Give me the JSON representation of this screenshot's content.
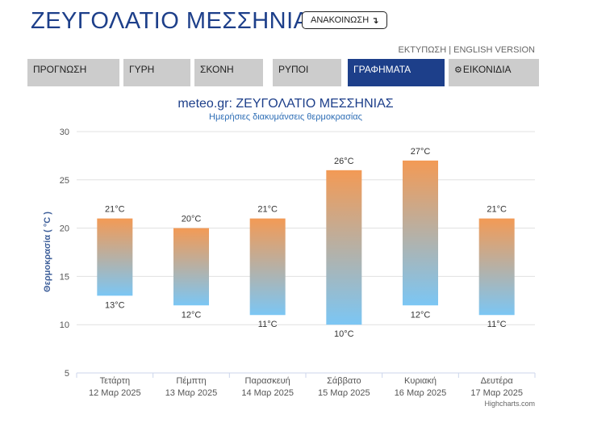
{
  "header": {
    "title": "ΖΕΥΓΟΛΑΤΙΟ ΜΕΣΣΗΝΙΑΣ",
    "announce_label": "ΑΝΑΚΟΙΝΩΣΗ",
    "announce_icon": "down-arrow-icon",
    "print_label": "ΕΚΤΥΠΩΣΗ",
    "separator": "|",
    "english_label": "ENGLISH VERSION"
  },
  "tabs": [
    {
      "label": "ΠΡΟΓΝΩΣΗ",
      "active": false
    },
    {
      "label": "ΓΥΡΗ",
      "active": false
    },
    {
      "label": "ΣΚΟΝΗ",
      "active": false
    },
    {
      "label": "ΡΥΠΟΙ",
      "active": false
    },
    {
      "label": "ΓΡΑΦΗΜΑΤΑ",
      "active": true
    },
    {
      "label": "ΕΙΚΟΝΙΔΙΑ",
      "active": false,
      "icon": "gear-icon"
    }
  ],
  "colors": {
    "brand": "#1d3f8a",
    "bar_top": "#f39a55",
    "bar_bottom": "#7bc6f4",
    "tab_bg": "#cccccc"
  },
  "chart_data": {
    "type": "bar",
    "subtype": "column-range",
    "title": "meteo.gr: ΖΕΥΓΟΛΑΤΙΟ ΜΕΣΣΗΝΙΑΣ",
    "subtitle": "Ημερήσιες διακυμάνσεις θερμοκρασίας",
    "ylabel": "Θερμοκρασία ( °C )",
    "ylim": [
      5,
      30
    ],
    "yticks": [
      5,
      10,
      15,
      20,
      25,
      30
    ],
    "grid": true,
    "unit": "°C",
    "credits": "Highcharts.com",
    "categories": [
      {
        "day": "Τετάρτη",
        "date": "12 Μαρ 2025"
      },
      {
        "day": "Πέμπτη",
        "date": "13 Μαρ 2025"
      },
      {
        "day": "Παρασκευή",
        "date": "14 Μαρ 2025"
      },
      {
        "day": "Σάββατο",
        "date": "15 Μαρ 2025"
      },
      {
        "day": "Κυριακή",
        "date": "16 Μαρ 2025"
      },
      {
        "day": "Δευτέρα",
        "date": "17 Μαρ 2025"
      }
    ],
    "series": [
      {
        "low": [
          13,
          12,
          11,
          10,
          12,
          11
        ],
        "high": [
          21,
          20,
          21,
          26,
          27,
          21
        ]
      }
    ]
  }
}
